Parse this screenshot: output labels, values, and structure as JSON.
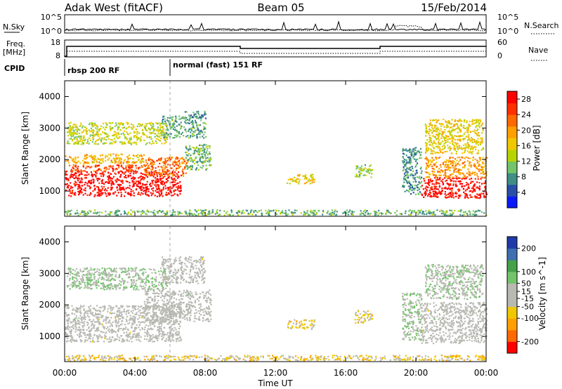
{
  "header": {
    "station": "Adak West (fitACF)",
    "beam": "Beam 05",
    "date": "15/Feb/2014"
  },
  "panels": {
    "nsky": {
      "label": "N.Sky",
      "tick_top": "10^5",
      "tick_bottom": "10^0",
      "right_label": "N.Search",
      "right_tick_top": "10^5",
      "right_tick_bottom": "10^0"
    },
    "freq": {
      "label_line1": "Freq.",
      "label_line2": "[MHz]",
      "tick_top": "18",
      "tick_bottom": "8",
      "right_label": "Nave",
      "right_tick_top": "60",
      "right_tick_bottom": "0"
    },
    "cpid": {
      "label": "CPID",
      "modes": [
        {
          "start_h": 0,
          "end_h": 6,
          "text": "rbsp 200 RF"
        },
        {
          "start_h": 6,
          "end_h": 24,
          "text": "normal (fast) 151 RF"
        }
      ]
    }
  },
  "colors": {
    "power": [
      "#0a1aff",
      "#2a4fa8",
      "#3f8f86",
      "#73c46a",
      "#b8d400",
      "#f0c800",
      "#ffa000",
      "#ff6a00",
      "#ff3000",
      "#ff0000"
    ],
    "velocity": [
      "#ff0000",
      "#ff6a00",
      "#ffa000",
      "#f0c800",
      "#b9b9b2",
      "#b9b9b2",
      "#73c46a",
      "#46a24a",
      "#3f6fb0",
      "#1f3aa8"
    ],
    "ground": "#b9b9b2"
  },
  "chart_data": [
    {
      "type": "heatmap",
      "name": "power",
      "xlabel": "Time UT",
      "ylabel": "Slant Range [km]",
      "xlim": [
        0,
        24
      ],
      "ylim": [
        200,
        4500
      ],
      "x_ticks": [
        "00:00",
        "04:00",
        "08:00",
        "12:00",
        "16:00",
        "20:00",
        "00:00"
      ],
      "x_tick_values": [
        0,
        4,
        8,
        12,
        16,
        20,
        24
      ],
      "y_ticks": [
        1000,
        2000,
        3000,
        4000
      ],
      "colorbar": {
        "label": "Power [dB]",
        "ticks": [
          4,
          8,
          12,
          16,
          20,
          24,
          28
        ],
        "range": [
          0,
          30
        ]
      },
      "regions": [
        {
          "t": [
            0.0,
            6.6
          ],
          "r": [
            850,
            1650
          ],
          "v": 29
        },
        {
          "t": [
            0.2,
            4.8
          ],
          "r": [
            1650,
            1850
          ],
          "v": 24
        },
        {
          "t": [
            0.0,
            4.5
          ],
          "r": [
            1900,
            2200
          ],
          "v": 18
        },
        {
          "t": [
            4.5,
            7.0
          ],
          "r": [
            1500,
            2100
          ],
          "v": 22
        },
        {
          "t": [
            6.8,
            8.3
          ],
          "r": [
            1700,
            2500
          ],
          "v": 10
        },
        {
          "t": [
            5.5,
            8.0
          ],
          "r": [
            2700,
            3400
          ],
          "v": 9
        },
        {
          "t": [
            6.8,
            8.0
          ],
          "r": [
            3350,
            3550
          ],
          "v": 7
        },
        {
          "t": [
            0.1,
            5.8
          ],
          "r": [
            2500,
            3200
          ],
          "v": 14
        },
        {
          "t": [
            12.6,
            14.2
          ],
          "r": [
            1250,
            1550
          ],
          "v": 17
        },
        {
          "t": [
            16.5,
            17.5
          ],
          "r": [
            1450,
            1850
          ],
          "v": 12
        },
        {
          "t": [
            19.2,
            20.3
          ],
          "r": [
            900,
            2400
          ],
          "v": 8
        },
        {
          "t": [
            20.3,
            24.0
          ],
          "r": [
            800,
            1450
          ],
          "v": 28
        },
        {
          "t": [
            20.5,
            24.0
          ],
          "r": [
            1450,
            2100
          ],
          "v": 20
        },
        {
          "t": [
            20.5,
            23.8
          ],
          "r": [
            2200,
            3300
          ],
          "v": 16
        },
        {
          "t": [
            0.0,
            24.0
          ],
          "r": [
            250,
            420
          ],
          "v": 10
        }
      ]
    },
    {
      "type": "heatmap",
      "name": "velocity",
      "xlabel": "Time UT",
      "ylabel": "Slant Range [km]",
      "xlim": [
        0,
        24
      ],
      "ylim": [
        200,
        4500
      ],
      "x_ticks": [
        "00:00",
        "04:00",
        "08:00",
        "12:00",
        "16:00",
        "20:00",
        "00:00"
      ],
      "x_tick_values": [
        0,
        4,
        8,
        12,
        16,
        20,
        24
      ],
      "y_ticks": [
        1000,
        2000,
        3000,
        4000
      ],
      "colorbar": {
        "label": "Velocity [m s^-1]",
        "ticks": [
          200,
          100,
          50,
          15,
          -15,
          -50,
          -100,
          -200
        ],
        "range": [
          -250,
          250
        ]
      },
      "regions": [
        {
          "t": [
            0.0,
            6.6
          ],
          "r": [
            850,
            2000
          ],
          "v": 0,
          "ground": true
        },
        {
          "t": [
            4.5,
            8.3
          ],
          "r": [
            1500,
            2500
          ],
          "v": 0,
          "ground": true
        },
        {
          "t": [
            5.5,
            8.0
          ],
          "r": [
            2700,
            3550
          ],
          "v": 0,
          "ground": true
        },
        {
          "t": [
            0.1,
            5.8
          ],
          "r": [
            2500,
            3200
          ],
          "v": 40
        },
        {
          "t": [
            12.6,
            14.2
          ],
          "r": [
            1250,
            1550
          ],
          "v": -60
        },
        {
          "t": [
            16.5,
            17.5
          ],
          "r": [
            1450,
            1850
          ],
          "v": -60
        },
        {
          "t": [
            19.2,
            20.3
          ],
          "r": [
            900,
            2400
          ],
          "v": 40
        },
        {
          "t": [
            20.3,
            24.0
          ],
          "r": [
            800,
            2100
          ],
          "v": 0,
          "ground": true
        },
        {
          "t": [
            20.5,
            23.8
          ],
          "r": [
            2200,
            3300
          ],
          "v": 30
        },
        {
          "t": [
            0.0,
            24.0
          ],
          "r": [
            250,
            420
          ],
          "v": -60
        }
      ]
    }
  ]
}
